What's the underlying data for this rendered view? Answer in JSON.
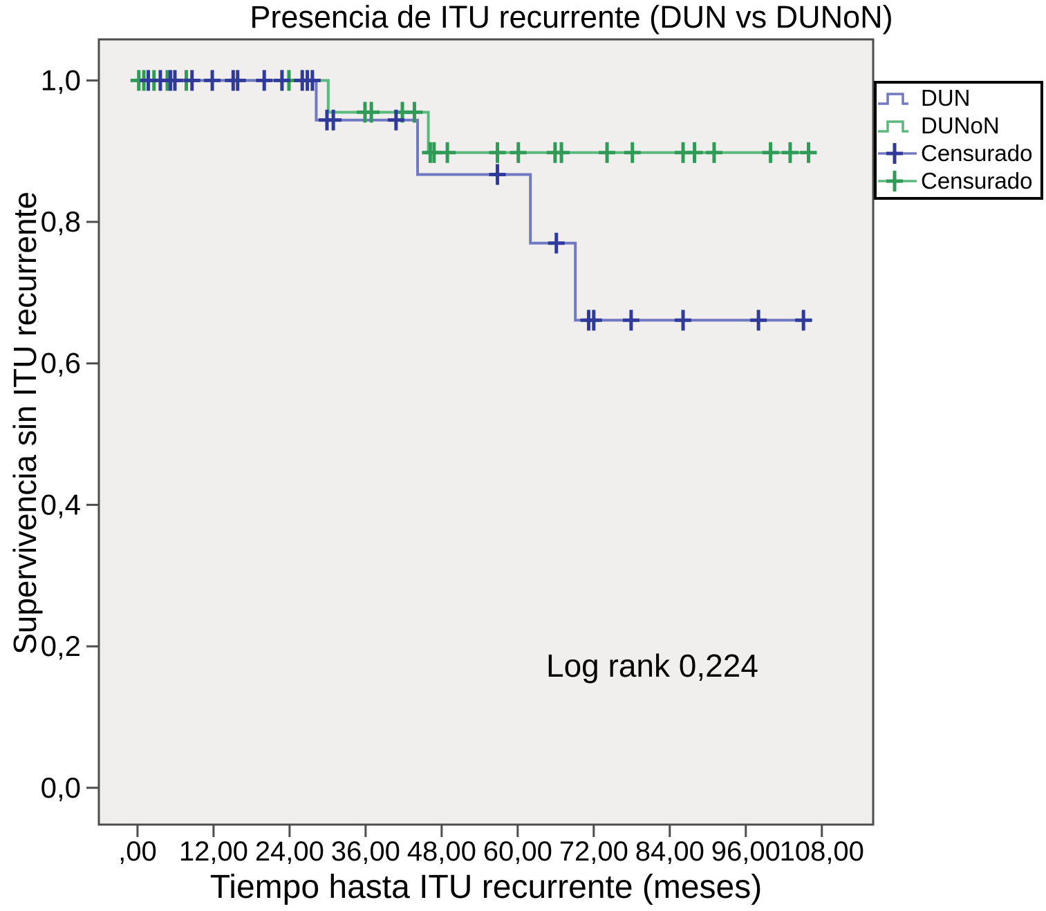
{
  "colors": {
    "plot_bg": "#F0EFEE",
    "plot_border": "#4D4D4D",
    "tick": "#4D4D4D",
    "text": "#000000",
    "legend_bg": "#FFFFFF",
    "legend_border": "#000000",
    "dun_line": "#7079C2",
    "dun_censor": "#2F3A99",
    "dunon_line": "#5CB97E",
    "dunon_censor": "#2F9B57"
  },
  "chart_data": {
    "type": "line",
    "subtype": "kaplan-meier-step",
    "title": "Presencia de ITU recurrente (DUN vs DUNoN)",
    "xlabel": "Tiempo hasta ITU recurrente (meses)",
    "ylabel": "Supervivencia sin ITU recurrente",
    "annotation": "Log rank 0,224",
    "grid": false,
    "legend_position": "top-right",
    "xlim": [
      -6.1,
      116.1
    ],
    "ylim": [
      -0.052,
      1.058
    ],
    "x_ticks": [
      {
        "v": 0,
        "label": ",00"
      },
      {
        "v": 12,
        "label": "12,00"
      },
      {
        "v": 24,
        "label": "24,00"
      },
      {
        "v": 36,
        "label": "36,00"
      },
      {
        "v": 48,
        "label": "48,00"
      },
      {
        "v": 60,
        "label": "60,00"
      },
      {
        "v": 72,
        "label": "72,00"
      },
      {
        "v": 84,
        "label": "84,00"
      },
      {
        "v": 96,
        "label": "96,00"
      },
      {
        "v": 108,
        "label": "108,00"
      }
    ],
    "y_ticks": [
      {
        "v": 0.0,
        "label": "0,0"
      },
      {
        "v": 0.2,
        "label": "0,2"
      },
      {
        "v": 0.4,
        "label": "0,4"
      },
      {
        "v": 0.6,
        "label": "0,6"
      },
      {
        "v": 0.8,
        "label": "0,8"
      },
      {
        "v": 1.0,
        "label": "1,0"
      }
    ],
    "series": [
      {
        "name": "DUNoN",
        "color": "#5CB97E",
        "censor_color": "#2F9B57",
        "steps": [
          [
            -1.0,
            1.0
          ],
          [
            30.1,
            1.0
          ],
          [
            30.1,
            0.955
          ],
          [
            45.9,
            0.955
          ],
          [
            45.9,
            0.898
          ],
          [
            106.8,
            0.898
          ]
        ],
        "censored": [
          [
            0.2,
            1.0
          ],
          [
            1.0,
            1.0
          ],
          [
            2.6,
            1.0
          ],
          [
            4.7,
            1.0
          ],
          [
            7.7,
            1.0
          ],
          [
            23.9,
            1.0
          ],
          [
            35.9,
            0.955
          ],
          [
            36.9,
            0.955
          ],
          [
            41.8,
            0.955
          ],
          [
            43.7,
            0.955
          ],
          [
            46.2,
            0.898
          ],
          [
            46.8,
            0.898
          ],
          [
            48.9,
            0.898
          ],
          [
            56.8,
            0.898
          ],
          [
            60.1,
            0.898
          ],
          [
            65.9,
            0.898
          ],
          [
            66.9,
            0.898
          ],
          [
            74.1,
            0.898
          ],
          [
            78.1,
            0.898
          ],
          [
            86.1,
            0.898
          ],
          [
            87.9,
            0.898
          ],
          [
            91.0,
            0.898
          ],
          [
            99.9,
            0.898
          ],
          [
            103.0,
            0.898
          ],
          [
            105.9,
            0.898
          ]
        ]
      },
      {
        "name": "DUN",
        "color": "#7079C2",
        "censor_color": "#2F3A99",
        "steps": [
          [
            -1.0,
            1.0
          ],
          [
            28.2,
            1.0
          ],
          [
            28.2,
            0.944
          ],
          [
            44.2,
            0.944
          ],
          [
            44.2,
            0.867
          ],
          [
            62.0,
            0.867
          ],
          [
            62.0,
            0.77
          ],
          [
            69.1,
            0.77
          ],
          [
            69.1,
            0.661
          ],
          [
            106.5,
            0.661
          ]
        ],
        "censored": [
          [
            1.7,
            1.0
          ],
          [
            3.6,
            1.0
          ],
          [
            5.2,
            1.0
          ],
          [
            5.9,
            1.0
          ],
          [
            8.6,
            1.0
          ],
          [
            11.8,
            1.0
          ],
          [
            15.1,
            1.0
          ],
          [
            15.8,
            1.0
          ],
          [
            20.0,
            1.0
          ],
          [
            22.8,
            1.0
          ],
          [
            26.0,
            1.0
          ],
          [
            26.8,
            1.0
          ],
          [
            27.6,
            1.0
          ],
          [
            29.9,
            0.944
          ],
          [
            30.9,
            0.944
          ],
          [
            40.8,
            0.944
          ],
          [
            56.8,
            0.867
          ],
          [
            66.1,
            0.77
          ],
          [
            71.2,
            0.661
          ],
          [
            72.0,
            0.661
          ],
          [
            77.9,
            0.661
          ],
          [
            86.1,
            0.661
          ],
          [
            98.0,
            0.661
          ],
          [
            105.1,
            0.661
          ]
        ]
      }
    ],
    "legend": [
      {
        "label": "DUN",
        "glyph": "step",
        "line": "#7079C2",
        "mark": "#7079C2"
      },
      {
        "label": "DUNoN",
        "glyph": "step",
        "line": "#5CB97E",
        "mark": "#5CB97E"
      },
      {
        "label": "Censurado",
        "glyph": "censor",
        "line": "#7079C2",
        "mark": "#2F3A99"
      },
      {
        "label": "Censurado",
        "glyph": "censor",
        "line": "#5CB97E",
        "mark": "#2F9B57"
      }
    ]
  }
}
